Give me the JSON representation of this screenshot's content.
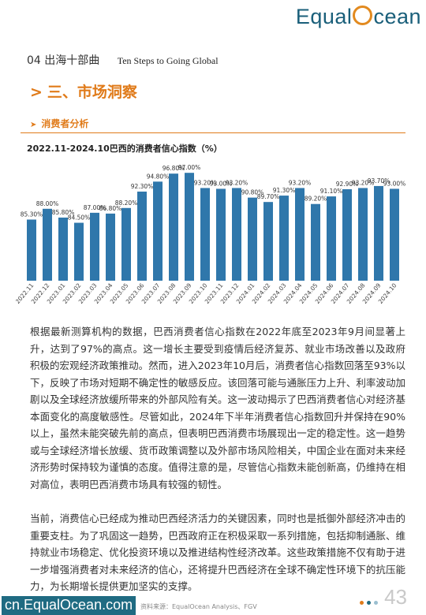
{
  "brand": {
    "logo_left": "Equal",
    "logo_right": "cean",
    "site": "cn.EqualOcean.com"
  },
  "chapter": {
    "number_title": "04 出海十部曲",
    "english": "Ten Steps to Going Global"
  },
  "section": {
    "arrow": ">",
    "title": "三、市场洞察"
  },
  "subsection": {
    "arrow": "➤",
    "title": "消费者分析"
  },
  "chart_title": "2022.11-2024.10巴西的消费者信心指数（%）",
  "chart_data": {
    "type": "bar",
    "title": "2022.11-2024.10巴西的消费者信心指数（%）",
    "categories": [
      "2022.11",
      "2022.12",
      "2023.01",
      "2023.02",
      "2023.03",
      "2023.04",
      "2023.05",
      "2023.06",
      "2023.07",
      "2023.08",
      "2023.09",
      "2023.10",
      "2023.11",
      "2023.12",
      "2024.01",
      "2024.02",
      "2024.03",
      "2024.04",
      "2024.05",
      "2024.06",
      "2024.07",
      "2024.08",
      "2024.09",
      "2024.10"
    ],
    "values": [
      85.3,
      88.0,
      85.8,
      84.5,
      87.0,
      86.8,
      88.2,
      92.3,
      94.8,
      96.8,
      97.0,
      93.2,
      93.0,
      93.2,
      90.8,
      89.7,
      91.3,
      93.2,
      89.2,
      91.1,
      92.9,
      93.2,
      93.7,
      93.0
    ],
    "labels": [
      "85.30%",
      "88.00%",
      "85.80%",
      "84.50%",
      "87.00%",
      "86.80%",
      "88.20%",
      "92.30%",
      "94.80%",
      "96.80%",
      "97.00%",
      "93.20%",
      "93.00%",
      "93.20%",
      "90.80%",
      "89.70%",
      "91.30%",
      "93.20%",
      "89.20%",
      "91.10%",
      "92.90%",
      "93.20%",
      "93.70%",
      "93.00%"
    ],
    "xlabel": "",
    "ylabel": "",
    "ylim": [
      70,
      100
    ],
    "grid": false,
    "bar_color": "#2f77ab"
  },
  "paragraphs": [
    "根据最新测算机构的数据，巴西消费者信心指数在2022年底至2023年9月间显著上升，达到了97%的高点。这一增长主要受到疫情后经济复苏、就业市场改善以及政府积极的宏观经济政策推动。然而，进入2023年10月后，消费者信心指数回落至93%以下，反映了市场对短期不确定性的敏感反应。该回落可能与通胀压力上升、利率波动加剧以及全球经济放缓所带来的外部风险有关。这一波动揭示了巴西消费者信心对经济基本面变化的高度敏感性。尽管如此，2024年下半年消费者信心指数回升并保持在90%以上，虽然未能突破先前的高点，但表明巴西消费市场展现出一定的稳定性。这一趋势或与全球经济增长放缓、货币政策调整以及外部市场风险相关，中国企业在面对未来经济形势时保持较为谨慎的态度。值得注意的是，尽管信心指数未能创新高，仍维持在相对高位，表明巴西消费市场具有较强的韧性。",
    "当前，消费信心已经成为推动巴西经济活力的关键因素，同时也是抵御外部经济冲击的重要支柱。为了巩固这一趋势，巴西政府正在积极采取一系列措施，包括抑制通胀、维持就业市场稳定、优化投资环境以及推进结构性经济改革。这些政策措施不仅有助于进一步增强消费者对未来经济的信心，还将提升巴西经济在全球不确定性环境下的抗压能力，为长期增长提供更加坚实的支撑。"
  ],
  "footer": {
    "source": "资料来源：EqualOcean Analysis、FGV",
    "page_number": "43"
  },
  "colors": {
    "accent": "#e07b1a",
    "brand": "#1f6b82",
    "bar": "#2f77ab"
  }
}
